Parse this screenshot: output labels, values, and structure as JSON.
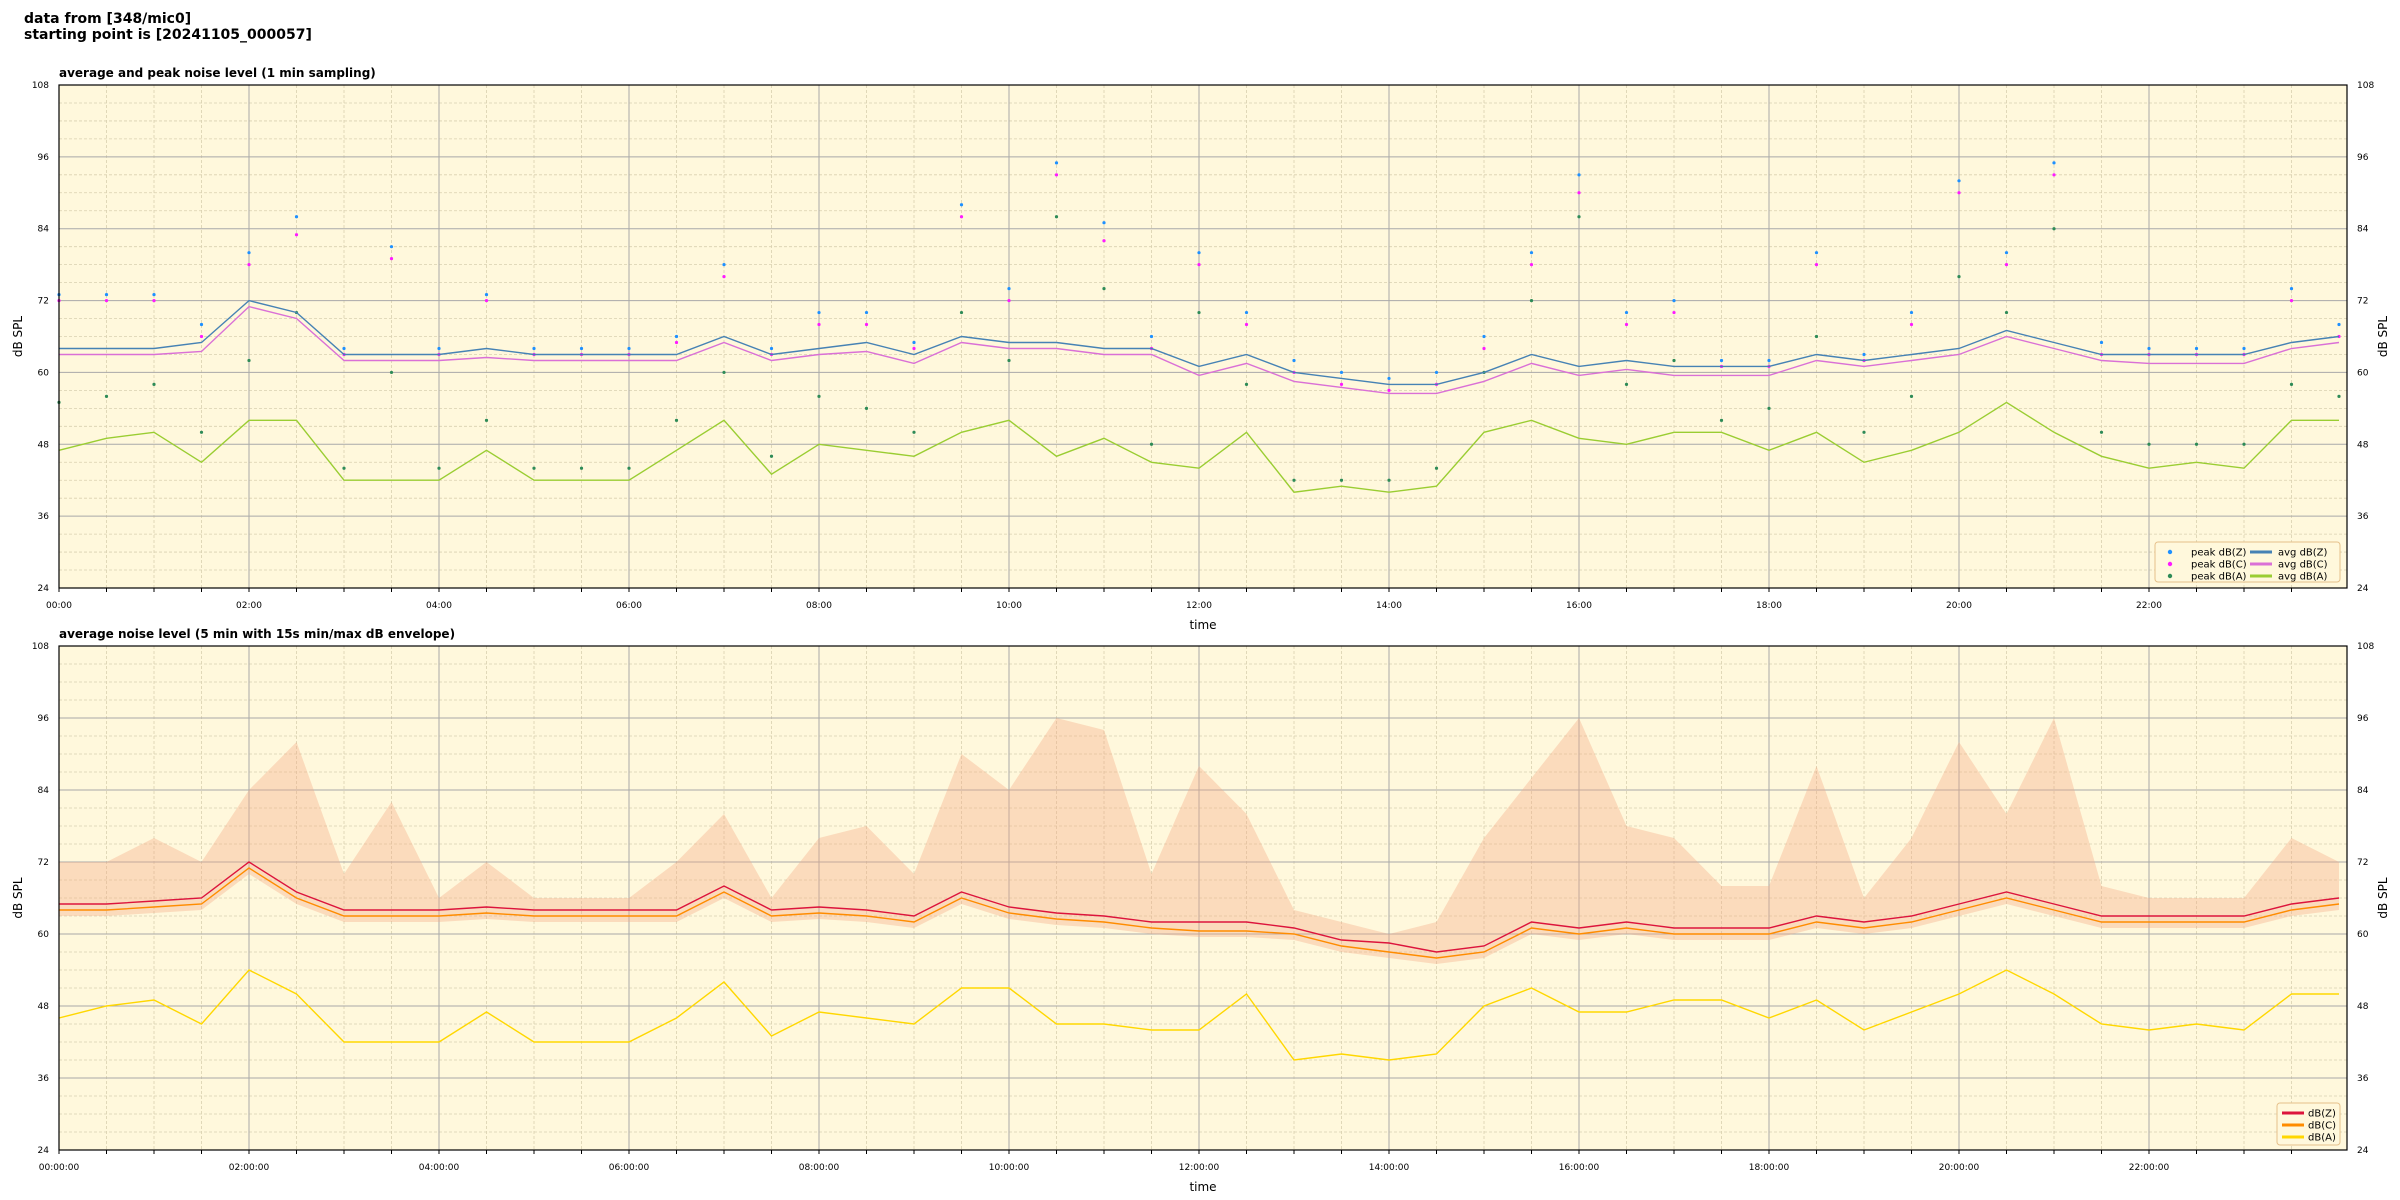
{
  "header": {
    "line1": "data from [348/mic0]",
    "line2": "starting point is [20241105_000057]"
  },
  "colors": {
    "background": "#fff8dc",
    "grid_major": "#a9a9a9",
    "grid_minor": "#d9d0b0",
    "legend_border": "#e6c08a"
  },
  "chart_data": [
    {
      "type": "line+scatter",
      "title": "average and peak noise level (1 min sampling)",
      "xlabel": "time",
      "ylabel": "dB SPL",
      "ylim": [
        24,
        108
      ],
      "xlim_hours": [
        0,
        24
      ],
      "yticks": [
        "24",
        "36",
        "48",
        "60",
        "72",
        "84",
        "96",
        "108"
      ],
      "xticks": [
        "00:00",
        "02:00",
        "04:00",
        "06:00",
        "08:00",
        "10:00",
        "12:00",
        "14:00",
        "16:00",
        "18:00",
        "20:00",
        "22:00"
      ],
      "grid": true,
      "legend": "lower-right",
      "x_hours": [
        0,
        0.5,
        1,
        1.5,
        2,
        2.5,
        3,
        3.5,
        4,
        4.5,
        5,
        5.5,
        6,
        6.5,
        7,
        7.5,
        8,
        8.5,
        9,
        9.5,
        10,
        10.5,
        11,
        11.5,
        12,
        12.5,
        13,
        13.5,
        14,
        14.5,
        15,
        15.5,
        16,
        16.5,
        17,
        17.5,
        18,
        18.5,
        19,
        19.5,
        20,
        20.5,
        21,
        21.5,
        22,
        22.5,
        23,
        23.5,
        24
      ],
      "series": [
        {
          "name": "peak dB(Z)",
          "kind": "scatter",
          "color": "#1e90ff",
          "values": [
            73,
            73,
            73,
            68,
            80,
            86,
            64,
            81,
            64,
            73,
            64,
            64,
            64,
            66,
            78,
            64,
            70,
            70,
            65,
            88,
            74,
            95,
            85,
            66,
            80,
            70,
            62,
            60,
            59,
            60,
            66,
            80,
            93,
            70,
            72,
            62,
            62,
            80,
            63,
            70,
            92,
            80,
            95,
            65,
            64,
            64,
            64,
            74,
            68
          ]
        },
        {
          "name": "peak dB(C)",
          "kind": "scatter",
          "color": "#ff1aff",
          "values": [
            72,
            72,
            72,
            66,
            78,
            83,
            63,
            79,
            63,
            72,
            63,
            63,
            63,
            65,
            76,
            63,
            68,
            68,
            64,
            86,
            72,
            93,
            82,
            64,
            78,
            68,
            60,
            58,
            57,
            58,
            64,
            78,
            90,
            68,
            70,
            61,
            61,
            78,
            62,
            68,
            90,
            78,
            93,
            63,
            63,
            63,
            63,
            72,
            66
          ]
        },
        {
          "name": "peak dB(A)",
          "kind": "scatter",
          "color": "#2e8b57",
          "values": [
            55,
            56,
            58,
            50,
            62,
            70,
            44,
            60,
            44,
            52,
            44,
            44,
            44,
            52,
            60,
            46,
            56,
            54,
            50,
            70,
            62,
            86,
            74,
            48,
            70,
            58,
            42,
            42,
            42,
            44,
            60,
            72,
            86,
            58,
            62,
            52,
            54,
            66,
            50,
            56,
            76,
            70,
            84,
            50,
            48,
            48,
            48,
            58,
            56
          ]
        },
        {
          "name": "avg dB(Z)",
          "kind": "line",
          "color": "#4682b4",
          "values": [
            64,
            64,
            64,
            65,
            72,
            70,
            63,
            63,
            63,
            64,
            63,
            63,
            63,
            63,
            66,
            63,
            64,
            65,
            63,
            66,
            65,
            65,
            64,
            64,
            61,
            63,
            60,
            59,
            58,
            58,
            60,
            63,
            61,
            62,
            61,
            61,
            61,
            63,
            62,
            63,
            64,
            67,
            65,
            63,
            63,
            63,
            63,
            65,
            66
          ]
        },
        {
          "name": "avg dB(C)",
          "kind": "line",
          "color": "#da70d6",
          "values": [
            63,
            63,
            63,
            63.5,
            71,
            69,
            62,
            62,
            62,
            62.5,
            62,
            62,
            62,
            62,
            65,
            62,
            63,
            63.5,
            61.5,
            65,
            64,
            64,
            63,
            63,
            59.5,
            61.5,
            58.5,
            57.5,
            56.5,
            56.5,
            58.5,
            61.5,
            59.5,
            60.5,
            59.5,
            59.5,
            59.5,
            62,
            61,
            62,
            63,
            66,
            64,
            62,
            61.5,
            61.5,
            61.5,
            64,
            65
          ]
        },
        {
          "name": "avg dB(A)",
          "kind": "line",
          "color": "#9acd32",
          "values": [
            47,
            49,
            50,
            45,
            52,
            52,
            42,
            42,
            42,
            47,
            42,
            42,
            42,
            47,
            52,
            43,
            48,
            47,
            46,
            50,
            52,
            46,
            49,
            45,
            44,
            50,
            40,
            41,
            40,
            41,
            50,
            52,
            49,
            48,
            50,
            50,
            47,
            50,
            45,
            47,
            50,
            55,
            50,
            46,
            44,
            45,
            44,
            52,
            52
          ]
        }
      ]
    },
    {
      "type": "line",
      "title": "average noise level (5 min with 15s min/max dB envelope)",
      "xlabel": "time",
      "ylabel": "dB SPL",
      "ylim": [
        24,
        108
      ],
      "xlim_hours": [
        0,
        24
      ],
      "yticks": [
        "24",
        "36",
        "48",
        "60",
        "72",
        "84",
        "96",
        "108"
      ],
      "xticks": [
        "00:00:00",
        "02:00:00",
        "04:00:00",
        "06:00:00",
        "08:00:00",
        "10:00:00",
        "12:00:00",
        "14:00:00",
        "16:00:00",
        "18:00:00",
        "20:00:00",
        "22:00:00"
      ],
      "grid": true,
      "legend": "lower-right",
      "x_hours": [
        0,
        0.5,
        1,
        1.5,
        2,
        2.5,
        3,
        3.5,
        4,
        4.5,
        5,
        5.5,
        6,
        6.5,
        7,
        7.5,
        8,
        8.5,
        9,
        9.5,
        10,
        10.5,
        11,
        11.5,
        12,
        12.5,
        13,
        13.5,
        14,
        14.5,
        15,
        15.5,
        16,
        16.5,
        17,
        17.5,
        18,
        18.5,
        19,
        19.5,
        20,
        20.5,
        21,
        21.5,
        22,
        22.5,
        23,
        23.5,
        24
      ],
      "envelope_max": [
        72,
        72,
        76,
        72,
        84,
        92,
        70,
        82,
        66,
        72,
        66,
        66,
        66,
        72,
        80,
        66,
        76,
        78,
        70,
        90,
        84,
        96,
        94,
        70,
        88,
        80,
        64,
        62,
        60,
        62,
        76,
        86,
        96,
        78,
        76,
        68,
        68,
        88,
        66,
        76,
        92,
        80,
        96,
        68,
        66,
        66,
        66,
        76,
        72
      ],
      "series": [
        {
          "name": "dB(Z)",
          "color": "#dc143c",
          "values": [
            65,
            65,
            65.5,
            66,
            72,
            67,
            64,
            64,
            64,
            64.5,
            64,
            64,
            64,
            64,
            68,
            64,
            64.5,
            64,
            63,
            67,
            64.5,
            63.5,
            63,
            62,
            62,
            62,
            61,
            59,
            58.5,
            57,
            58,
            62,
            61,
            62,
            61,
            61,
            61,
            63,
            62,
            63,
            65,
            67,
            65,
            63,
            63,
            63,
            63,
            65,
            66
          ]
        },
        {
          "name": "dB(C)",
          "color": "#ff8c00",
          "values": [
            64,
            64,
            64.5,
            65,
            71,
            66,
            63,
            63,
            63,
            63.5,
            63,
            63,
            63,
            63,
            67,
            63,
            63.5,
            63,
            62,
            66,
            63.5,
            62.5,
            62,
            61,
            60.5,
            60.5,
            60,
            58,
            57,
            56,
            57,
            61,
            60,
            61,
            60,
            60,
            60,
            62,
            61,
            62,
            64,
            66,
            64,
            62,
            62,
            62,
            62,
            64,
            65
          ]
        },
        {
          "name": "dB(A)",
          "color": "#ffd700",
          "values": [
            46,
            48,
            49,
            45,
            54,
            50,
            42,
            42,
            42,
            47,
            42,
            42,
            42,
            46,
            52,
            43,
            47,
            46,
            45,
            51,
            51,
            45,
            45,
            44,
            44,
            50,
            39,
            40,
            39,
            40,
            48,
            51,
            47,
            47,
            49,
            49,
            46,
            49,
            44,
            47,
            50,
            54,
            50,
            45,
            44,
            45,
            44,
            50,
            50
          ]
        }
      ]
    }
  ]
}
